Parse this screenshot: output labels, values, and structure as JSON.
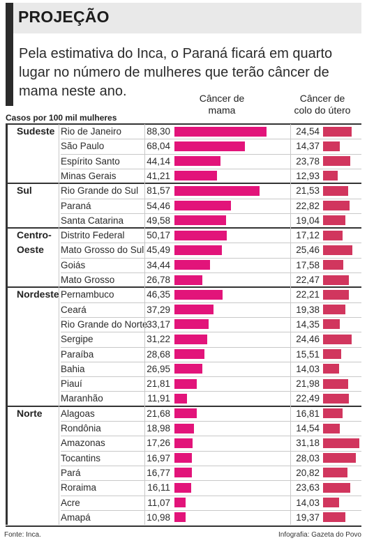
{
  "title": "PROJEÇÃO",
  "subtitle": "Pela estimativa do Inca, o Paraná ficará em quarto lugar no número de mulheres que terão câncer de mama neste ano.",
  "units_label": "Casos por 100 mil mulheres",
  "column_headers": {
    "breast": [
      "Câncer de",
      "mama"
    ],
    "cervix": [
      "Câncer de",
      "colo do útero"
    ]
  },
  "source": "Fonte: Inca.",
  "credit": "Infografia: Gazeta do Povo",
  "colors": {
    "breast_bar": "#e2147a",
    "cervix_bar": "#d1365e",
    "title_bg": "#e9e9e9",
    "accent": "#2b2b2b"
  },
  "chart_data": {
    "type": "bar",
    "orientation": "horizontal",
    "grouping": "region",
    "series": [
      {
        "name": "Câncer de mama",
        "key": "breast"
      },
      {
        "name": "Câncer de colo do útero",
        "key": "cervix"
      }
    ],
    "regions": [
      {
        "name": [
          "Sudeste"
        ],
        "rows": [
          {
            "state": "Rio de Janeiro",
            "breast": 88.3,
            "breast_label": "88,30",
            "cervix": 24.54,
            "cervix_label": "24,54"
          },
          {
            "state": "São Paulo",
            "breast": 68.04,
            "breast_label": "68,04",
            "cervix": 14.37,
            "cervix_label": "14,37"
          },
          {
            "state": "Espírito Santo",
            "breast": 44.14,
            "breast_label": "44,14",
            "cervix": 23.78,
            "cervix_label": "23,78"
          },
          {
            "state": "Minas Gerais",
            "breast": 41.21,
            "breast_label": "41,21",
            "cervix": 12.93,
            "cervix_label": "12,93"
          }
        ]
      },
      {
        "name": [
          "Sul"
        ],
        "rows": [
          {
            "state": "Rio Grande do Sul",
            "breast": 81.57,
            "breast_label": "81,57",
            "cervix": 21.53,
            "cervix_label": "21,53"
          },
          {
            "state": "Paraná",
            "breast": 54.46,
            "breast_label": "54,46",
            "cervix": 22.82,
            "cervix_label": "22,82"
          },
          {
            "state": "Santa Catarina",
            "breast": 49.58,
            "breast_label": "49,58",
            "cervix": 19.04,
            "cervix_label": "19,04"
          }
        ]
      },
      {
        "name": [
          "Centro-",
          "Oeste"
        ],
        "rows": [
          {
            "state": "Distrito Federal",
            "breast": 50.17,
            "breast_label": "50,17",
            "cervix": 17.12,
            "cervix_label": "17,12"
          },
          {
            "state": "Mato Grosso do Sul",
            "breast": 45.49,
            "breast_label": "45,49",
            "cervix": 25.46,
            "cervix_label": "25,46"
          },
          {
            "state": "Goiás",
            "breast": 34.44,
            "breast_label": "34,44",
            "cervix": 17.58,
            "cervix_label": "17,58"
          },
          {
            "state": "Mato Grosso",
            "breast": 26.78,
            "breast_label": "26,78",
            "cervix": 22.47,
            "cervix_label": "22,47"
          }
        ]
      },
      {
        "name": [
          "Nordeste"
        ],
        "rows": [
          {
            "state": "Pernambuco",
            "breast": 46.35,
            "breast_label": "46,35",
            "cervix": 22.21,
            "cervix_label": "22,21"
          },
          {
            "state": "Ceará",
            "breast": 37.29,
            "breast_label": "37,29",
            "cervix": 19.38,
            "cervix_label": "19,38"
          },
          {
            "state": "Rio Grande do Norte",
            "breast": 33.17,
            "breast_label": "33,17",
            "cervix": 14.35,
            "cervix_label": "14,35"
          },
          {
            "state": "Sergipe",
            "breast": 31.22,
            "breast_label": "31,22",
            "cervix": 24.46,
            "cervix_label": "24,46"
          },
          {
            "state": "Paraíba",
            "breast": 28.68,
            "breast_label": "28,68",
            "cervix": 15.51,
            "cervix_label": "15,51"
          },
          {
            "state": "Bahia",
            "breast": 26.95,
            "breast_label": "26,95",
            "cervix": 14.03,
            "cervix_label": "14,03"
          },
          {
            "state": "Piauí",
            "breast": 21.81,
            "breast_label": "21,81",
            "cervix": 21.98,
            "cervix_label": "21,98"
          },
          {
            "state": "Maranhão",
            "breast": 11.91,
            "breast_label": "11,91",
            "cervix": 22.49,
            "cervix_label": "22,49"
          }
        ]
      },
      {
        "name": [
          "Norte"
        ],
        "rows": [
          {
            "state": "Alagoas",
            "breast": 21.68,
            "breast_label": "21,68",
            "cervix": 16.81,
            "cervix_label": "16,81"
          },
          {
            "state": "Rondônia",
            "breast": 18.98,
            "breast_label": "18,98",
            "cervix": 14.54,
            "cervix_label": "14,54"
          },
          {
            "state": "Amazonas",
            "breast": 17.26,
            "breast_label": "17,26",
            "cervix": 31.18,
            "cervix_label": "31,18"
          },
          {
            "state": "Tocantins",
            "breast": 16.97,
            "breast_label": "16,97",
            "cervix": 28.03,
            "cervix_label": "28,03"
          },
          {
            "state": "Pará",
            "breast": 16.77,
            "breast_label": "16,77",
            "cervix": 20.82,
            "cervix_label": "20,82"
          },
          {
            "state": "Roraima",
            "breast": 16.11,
            "breast_label": "16,11",
            "cervix": 23.63,
            "cervix_label": "23,63"
          },
          {
            "state": "Acre",
            "breast": 11.07,
            "breast_label": "11,07",
            "cervix": 14.03,
            "cervix_label": "14,03"
          },
          {
            "state": "Amapá",
            "breast": 10.98,
            "breast_label": "10,98",
            "cervix": 19.37,
            "cervix_label": "19,37"
          }
        ]
      }
    ]
  }
}
